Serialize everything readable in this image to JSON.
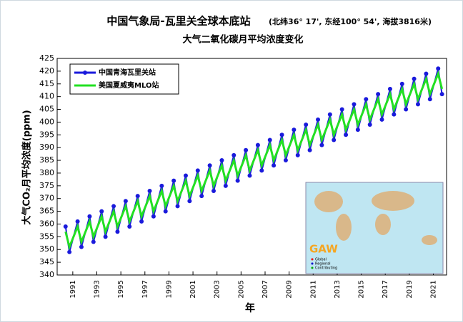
{
  "chart_data": {
    "type": "line",
    "title": "中国气象局-瓦里关全球本底站",
    "title_note": "(北纬36° 17', 东经100° 54', 海拔3816米)",
    "subtitle": "大气二氧化碳月平均浓度变化",
    "xlabel": "年",
    "ylabel": "大气CO₂月平均浓度(ppm)",
    "x": [
      1990.4,
      1990.72,
      1991.4,
      1991.72,
      1992.4,
      1992.72,
      1993.4,
      1993.72,
      1994.4,
      1994.72,
      1995.4,
      1995.72,
      1996.4,
      1996.72,
      1997.4,
      1997.72,
      1998.4,
      1998.72,
      1999.4,
      1999.72,
      2000.4,
      2000.72,
      2001.4,
      2001.72,
      2002.4,
      2002.72,
      2003.4,
      2003.72,
      2004.4,
      2004.72,
      2005.4,
      2005.72,
      2006.4,
      2006.72,
      2007.4,
      2007.72,
      2008.4,
      2008.72,
      2009.4,
      2009.72,
      2010.4,
      2010.72,
      2011.4,
      2011.72,
      2012.4,
      2012.72,
      2013.4,
      2013.72,
      2014.4,
      2014.72,
      2015.4,
      2015.72,
      2016.4,
      2016.72,
      2017.4,
      2017.72,
      2018.4,
      2018.72,
      2019.4,
      2019.72,
      2020.4,
      2020.72,
      2021.4,
      2021.72
    ],
    "series": [
      {
        "name": "中国青海瓦里关站",
        "color": "#1a1adc",
        "markers": true,
        "values": [
          359,
          349,
          361,
          351,
          363,
          353,
          365,
          355,
          367,
          357,
          369,
          359,
          371,
          361,
          373,
          363,
          375,
          365,
          377,
          367,
          379,
          369,
          381,
          371,
          383,
          373,
          385,
          375,
          387,
          377,
          389,
          379,
          391,
          381,
          393,
          383,
          395,
          385,
          397,
          387,
          399,
          389,
          401,
          391,
          403,
          393,
          405,
          395,
          407,
          397,
          409,
          399,
          411,
          401,
          413,
          403,
          415,
          405,
          417,
          407,
          419,
          409,
          421,
          411
        ]
      },
      {
        "name": "美国夏威夷MLO站",
        "color": "#22e022",
        "markers": false,
        "values": [
          357,
          351,
          359,
          353,
          361,
          355,
          363,
          357,
          365,
          359,
          367,
          361,
          369,
          363,
          371,
          365,
          373,
          367,
          375,
          369,
          377,
          371,
          379,
          373,
          381,
          375,
          383,
          377,
          385,
          379,
          387,
          381,
          389,
          383,
          391,
          385,
          393,
          387,
          395,
          389,
          397,
          391,
          399,
          393,
          401,
          395,
          403,
          397,
          405,
          399,
          407,
          401,
          409,
          403,
          411,
          405,
          413,
          407,
          415,
          409,
          417,
          411,
          419,
          413
        ]
      }
    ],
    "xlim": [
      1989.7,
      2022.1
    ],
    "xticks": [
      1991,
      1993,
      1995,
      1997,
      1999,
      2001,
      2003,
      2005,
      2007,
      2009,
      2011,
      2013,
      2015,
      2017,
      2019,
      2021
    ],
    "ylim": [
      340,
      425
    ],
    "yticks": [
      340,
      345,
      350,
      355,
      360,
      365,
      370,
      375,
      380,
      385,
      390,
      395,
      400,
      405,
      410,
      415,
      420,
      425
    ],
    "legend": "upper left",
    "inset": {
      "label": "GAW",
      "legend": [
        "Global",
        "Regional",
        "Contributing"
      ]
    }
  }
}
